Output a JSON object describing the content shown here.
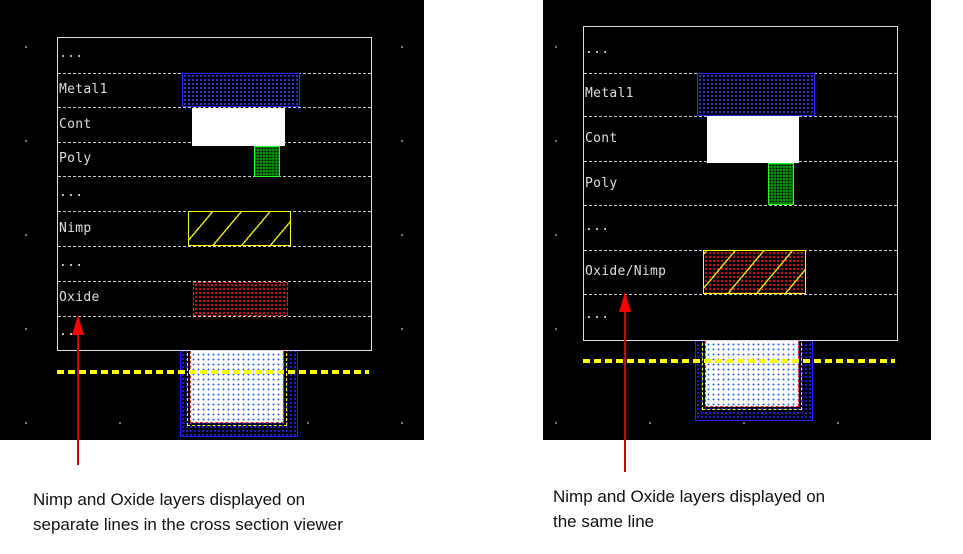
{
  "left_view": {
    "rows": [
      "...",
      "Metal1",
      "Cont",
      "Poly",
      "...",
      "Nimp",
      "...",
      "Oxide",
      "..."
    ],
    "caption_lines": [
      "Nimp and Oxide layers displayed on",
      "separate lines in the cross section viewer"
    ]
  },
  "right_view": {
    "rows": [
      "...",
      "Metal1",
      "Cont",
      "Poly",
      "...",
      "Oxide/Nimp",
      "..."
    ],
    "caption_lines": [
      "Nimp and Oxide layers displayed on",
      "the same line"
    ]
  },
  "colors": {
    "metal1": "#1a2aff",
    "cont": "#ffffff",
    "poly": "#22ff22",
    "nimp": "#ffff00",
    "oxide": "#ff2222",
    "arrow": "#ff0000",
    "background": "#000000"
  }
}
